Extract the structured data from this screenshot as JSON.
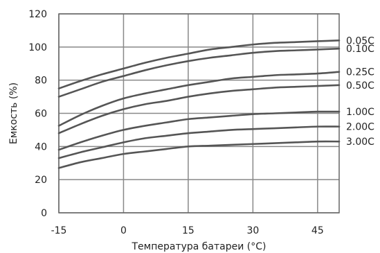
{
  "chart_data": {
    "type": "line",
    "xlabel": "Температура батареи (°C)",
    "ylabel": "Емкость (%)",
    "xlim": [
      -15,
      50
    ],
    "ylim": [
      0,
      120
    ],
    "x_ticks": [
      -15,
      0,
      15,
      30,
      45
    ],
    "x_tick_labels": [
      "-15",
      "0",
      "15",
      "30",
      "45"
    ],
    "y_ticks": [
      0,
      20,
      40,
      60,
      80,
      100,
      120
    ],
    "y_tick_labels": [
      "0",
      "20",
      "40",
      "60",
      "80",
      "100",
      "120"
    ],
    "grid": true,
    "legend": "right-end labels",
    "line_color": "#555555",
    "grid_color": "#888888",
    "series": [
      {
        "name": "0.05C",
        "x": [
          -15,
          -10,
          -5,
          0,
          5,
          10,
          15,
          20,
          25,
          30,
          35,
          40,
          45,
          50
        ],
        "values": [
          75,
          79.5,
          83.5,
          87,
          90.5,
          93.5,
          96,
          98.5,
          100,
          101.5,
          102.5,
          103,
          103.5,
          104
        ]
      },
      {
        "name": "0.10C",
        "x": [
          -15,
          -10,
          -5,
          0,
          5,
          10,
          15,
          20,
          25,
          30,
          35,
          40,
          45,
          50
        ],
        "values": [
          70,
          74.5,
          79,
          82.5,
          86,
          89,
          91.5,
          93.5,
          95,
          96.5,
          97.5,
          98,
          98.5,
          99
        ]
      },
      {
        "name": "0.25C",
        "x": [
          -15,
          -10,
          -5,
          0,
          5,
          10,
          15,
          20,
          25,
          30,
          35,
          40,
          45,
          50
        ],
        "values": [
          52.5,
          59,
          64.5,
          69,
          72,
          74.5,
          77,
          79,
          81,
          82,
          83,
          83.5,
          84,
          85
        ]
      },
      {
        "name": "0.50C",
        "x": [
          -15,
          -10,
          -5,
          0,
          5,
          10,
          15,
          20,
          25,
          30,
          35,
          40,
          45,
          50
        ],
        "values": [
          48,
          53.5,
          58.5,
          62.5,
          65.5,
          67.5,
          70,
          72,
          73.5,
          74.5,
          75.5,
          76,
          76.5,
          77
        ]
      },
      {
        "name": "1.00C",
        "x": [
          -15,
          -10,
          -5,
          0,
          5,
          10,
          15,
          20,
          25,
          30,
          35,
          40,
          45,
          50
        ],
        "values": [
          38,
          42.5,
          46.5,
          50,
          52.5,
          54.5,
          56.5,
          57.5,
          58.5,
          59.5,
          60,
          60.5,
          61,
          61
        ]
      },
      {
        "name": "2.00C",
        "x": [
          -15,
          -10,
          -5,
          0,
          5,
          10,
          15,
          20,
          25,
          30,
          35,
          40,
          45,
          50
        ],
        "values": [
          33,
          36.5,
          39.5,
          42.5,
          45,
          46.5,
          48,
          49,
          50,
          50.5,
          51,
          51.5,
          52,
          52
        ]
      },
      {
        "name": "3.00C",
        "x": [
          -15,
          -10,
          -5,
          0,
          5,
          10,
          15,
          20,
          25,
          30,
          35,
          40,
          45,
          50
        ],
        "values": [
          27,
          30.5,
          33,
          35.5,
          37,
          38.5,
          40,
          40.5,
          41,
          41.5,
          42,
          42.5,
          43,
          43
        ]
      }
    ]
  }
}
